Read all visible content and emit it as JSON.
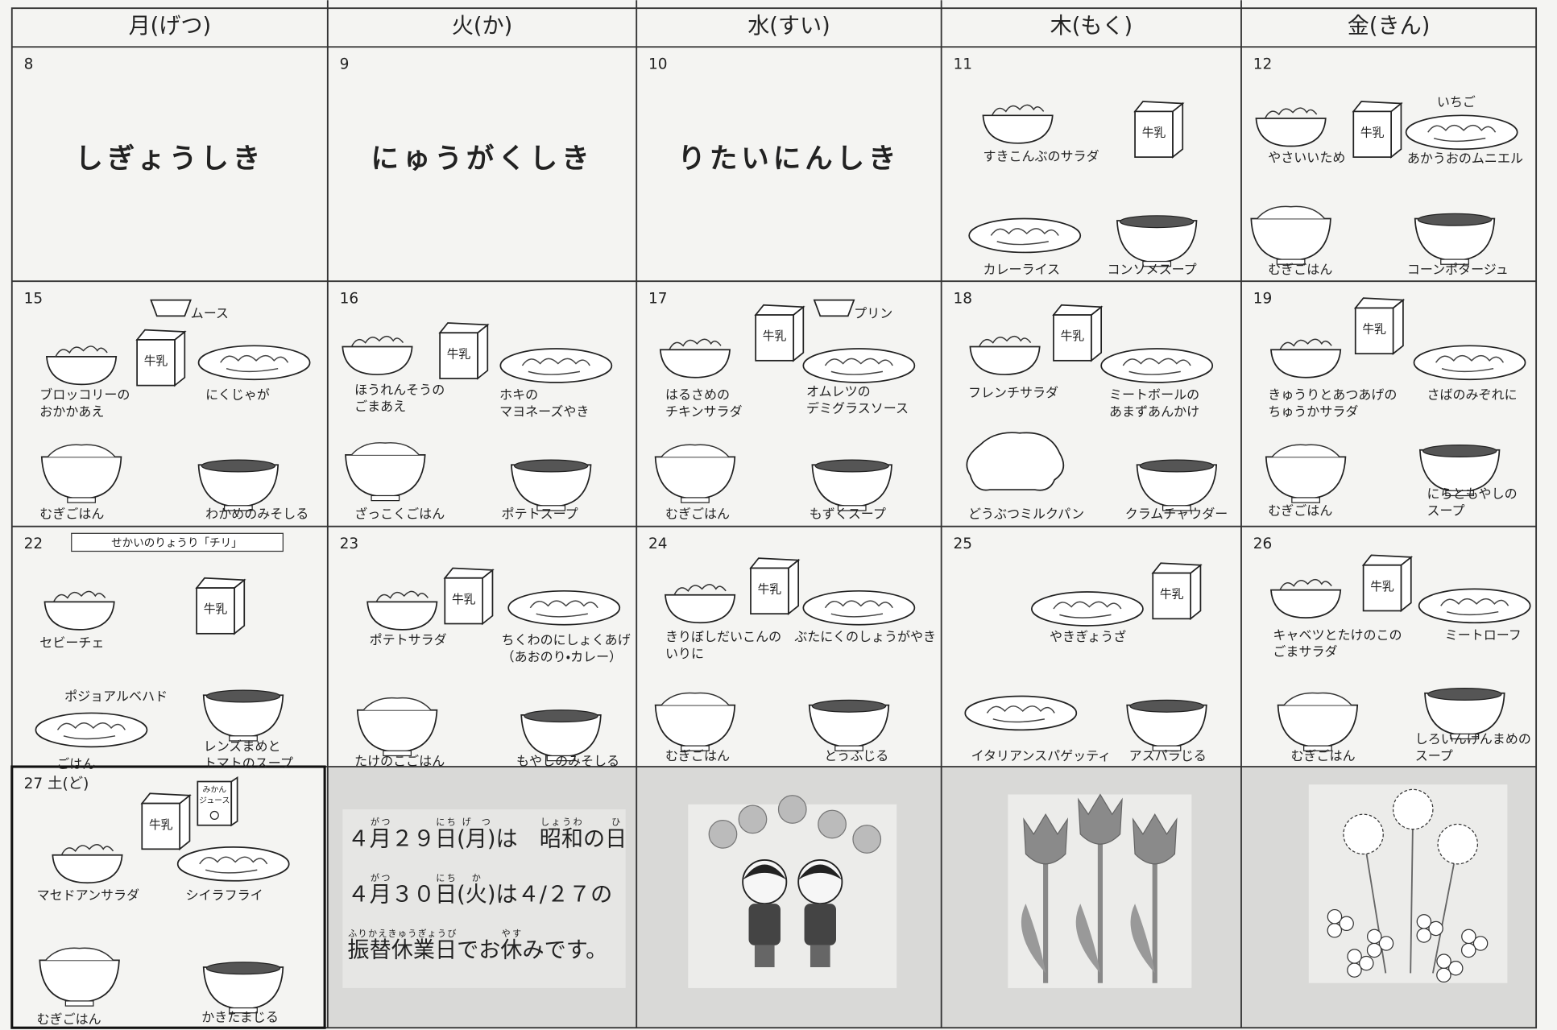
{
  "header": {
    "days": [
      "月(げつ)",
      "火(か)",
      "水(すい)",
      "木(もく)",
      "金(きん)"
    ]
  },
  "cells": [
    {
      "date": "8",
      "event": "しぎょうしき"
    },
    {
      "date": "9",
      "event": "にゅうがくしき"
    },
    {
      "date": "10",
      "event": "りたいにんしき"
    },
    {
      "date": "11",
      "milk": "牛乳",
      "items": [
        [
          "すきこんぶのサラダ"
        ],
        [
          "カレーライス"
        ],
        [
          "コンソメスープ"
        ]
      ]
    },
    {
      "date": "12",
      "milk": "牛乳",
      "items": [
        [
          "やさいいため"
        ],
        [
          "いちご"
        ],
        [
          "あかうおのムニエル"
        ],
        [
          "むぎごはん"
        ],
        [
          "コーンポタージュ"
        ]
      ]
    },
    {
      "date": "15",
      "milk": "牛乳",
      "items": [
        [
          "ムース"
        ],
        [
          "ブロッコリーの",
          "おかかあえ"
        ],
        [
          "にくじゃが"
        ],
        [
          "むぎごはん"
        ],
        [
          "わかめのみそしる"
        ]
      ]
    },
    {
      "date": "16",
      "milk": "牛乳",
      "items": [
        [
          "ほうれんそうの",
          "ごまあえ"
        ],
        [
          "ホキの",
          "マヨネーズやき"
        ],
        [
          "ざっこくごはん"
        ],
        [
          "ポテトスープ"
        ]
      ]
    },
    {
      "date": "17",
      "milk": "牛乳",
      "items": [
        [
          "プリン"
        ],
        [
          "はるさめの",
          "チキンサラダ"
        ],
        [
          "オムレツの",
          "デミグラスソース"
        ],
        [
          "むぎごはん"
        ],
        [
          "もずくスープ"
        ]
      ]
    },
    {
      "date": "18",
      "milk": "牛乳",
      "items": [
        [
          "フレンチサラダ"
        ],
        [
          "ミートボールの",
          "あまずあんかけ"
        ],
        [
          "どうぶつミルクパン"
        ],
        [
          "クラムチャウダー"
        ]
      ]
    },
    {
      "date": "19",
      "milk": "牛乳",
      "items": [
        [
          "きゅうりとあつあげの",
          "ちゅうかサラダ"
        ],
        [
          "さばのみぞれに"
        ],
        [
          "むぎごはん"
        ],
        [
          "にらともやしの",
          "スープ"
        ]
      ]
    },
    {
      "date": "22",
      "banner": "せかいのりょうり「チリ」",
      "milk": "牛乳",
      "items": [
        [
          "セビーチェ"
        ],
        [
          "ポジョアルベハド"
        ],
        [
          "ごはん"
        ],
        [
          "レンズまめと",
          "トマトのスープ"
        ]
      ]
    },
    {
      "date": "23",
      "milk": "牛乳",
      "items": [
        [
          "ポテトサラダ"
        ],
        [
          "ちくわのにしょくあげ",
          "（あおのり・カレー）"
        ],
        [
          "たけのこごはん"
        ],
        [
          "もやしのみそしる"
        ]
      ]
    },
    {
      "date": "24",
      "milk": "牛乳",
      "items": [
        [
          "きりぼしだいこんの",
          "いりに"
        ],
        [
          "ぶたにくのしょうがやき"
        ],
        [
          "むぎごはん"
        ],
        [
          "とうふじる"
        ]
      ]
    },
    {
      "date": "25",
      "milk": "牛乳",
      "items": [
        [
          "やきぎょうざ"
        ],
        [
          "イタリアンスパゲッティ"
        ],
        [
          "アスパラじる"
        ]
      ]
    },
    {
      "date": "26",
      "milk": "牛乳",
      "items": [
        [
          "キャベツとたけのこの",
          "ごまサラダ"
        ],
        [
          "ミートローフ"
        ],
        [
          "むぎごはん"
        ],
        [
          "しろいんげんまめの",
          "スープ"
        ]
      ]
    },
    {
      "date": "27 土(ど)",
      "milk": "牛乳",
      "juice": [
        "みかん",
        "ジュース"
      ],
      "items": [
        [
          "マセドアンサラダ"
        ],
        [
          "シイラフライ"
        ],
        [
          "むぎごはん"
        ],
        [
          "かきたまじる"
        ]
      ]
    }
  ],
  "notice": {
    "lines": [
      [
        {
          "text": "４"
        },
        {
          "text": "月",
          "ruby": "がつ"
        },
        {
          "text": "２９"
        },
        {
          "text": "日",
          "ruby": "にち"
        },
        {
          "text": "(月)",
          "ruby": "げつ"
        },
        {
          "text": "は　"
        },
        {
          "text": "昭和",
          "ruby": "しょうわ"
        },
        {
          "text": "の"
        },
        {
          "text": "日",
          "ruby": "ひ"
        }
      ],
      [
        {
          "text": "４"
        },
        {
          "text": "月",
          "ruby": "がつ"
        },
        {
          "text": "３０"
        },
        {
          "text": "日",
          "ruby": "にち"
        },
        {
          "text": "(火)",
          "ruby": "か"
        },
        {
          "text": "は４/２７の"
        }
      ],
      [
        {
          "text": "振替休業日",
          "ruby": "ふりかえきゅうぎょうび"
        },
        {
          "text": "でお"
        },
        {
          "text": "休",
          "ruby": "やす"
        },
        {
          "text": "みです。"
        }
      ]
    ]
  }
}
